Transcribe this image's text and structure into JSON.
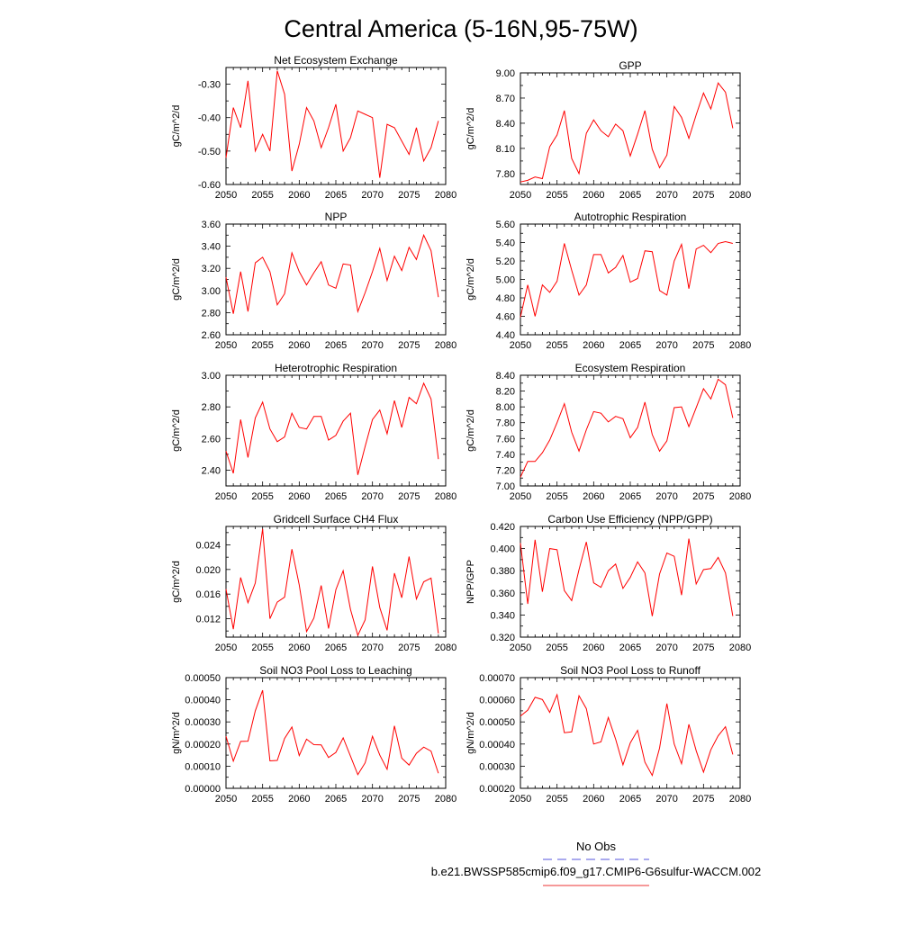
{
  "page_title": "Central America (5-16N,95-75W)",
  "legend": {
    "entries": [
      {
        "label": "No Obs",
        "color": "#5555dd",
        "dash": "dashed"
      },
      {
        "label": "b.e21.BWSSP585cmip6.f09_g17.CMIP6-G6sulfur-WACCM.002",
        "color": "#ee3333",
        "dash": "solid"
      }
    ]
  },
  "chart_data": [
    {
      "type": "line",
      "title": "Net Ecosystem Exchange",
      "ylabel": "gC/m^2/d",
      "xlim": [
        2050,
        2080
      ],
      "ylim": [
        -0.6,
        -0.25
      ],
      "x_ticks": [
        "2050",
        "2055",
        "2060",
        "2065",
        "2070",
        "2075",
        "2080"
      ],
      "y_ticks": [
        -0.6,
        -0.5,
        -0.4,
        -0.3
      ],
      "y_tick_labels": [
        "-0.60",
        "-0.50",
        "-0.40",
        "-0.30"
      ],
      "color": "#ff0000",
      "x": [
        2050,
        2051,
        2052,
        2053,
        2054,
        2055,
        2056,
        2057,
        2058,
        2059,
        2060,
        2061,
        2062,
        2063,
        2064,
        2065,
        2066,
        2067,
        2068,
        2069,
        2070,
        2071,
        2072,
        2073,
        2074,
        2075,
        2076,
        2077,
        2078,
        2079
      ],
      "values": [
        -0.52,
        -0.37,
        -0.43,
        -0.29,
        -0.5,
        -0.45,
        -0.5,
        -0.26,
        -0.33,
        -0.56,
        -0.48,
        -0.37,
        -0.41,
        -0.49,
        -0.43,
        -0.36,
        -0.5,
        -0.46,
        -0.38,
        -0.39,
        -0.4,
        -0.58,
        -0.42,
        -0.43,
        -0.47,
        -0.51,
        -0.43,
        -0.53,
        -0.49,
        -0.41
      ]
    },
    {
      "type": "line",
      "title": "GPP",
      "ylabel": "gC/m^2/d",
      "xlim": [
        2050,
        2080
      ],
      "ylim": [
        7.67,
        9.0
      ],
      "x_ticks": [
        "2050",
        "2055",
        "2060",
        "2065",
        "2070",
        "2075",
        "2080"
      ],
      "y_ticks": [
        7.8,
        8.1,
        8.4,
        8.7,
        9.0
      ],
      "y_tick_labels": [
        "7.80",
        "8.10",
        "8.40",
        "8.70",
        "9.00"
      ],
      "color": "#ff0000",
      "x": [
        2050,
        2051,
        2052,
        2053,
        2054,
        2055,
        2056,
        2057,
        2058,
        2059,
        2060,
        2061,
        2062,
        2063,
        2064,
        2065,
        2066,
        2067,
        2068,
        2069,
        2070,
        2071,
        2072,
        2073,
        2074,
        2075,
        2076,
        2077,
        2078,
        2079
      ],
      "values": [
        7.7,
        7.72,
        7.76,
        7.74,
        8.12,
        8.26,
        8.55,
        7.98,
        7.8,
        8.28,
        8.44,
        8.31,
        8.24,
        8.39,
        8.31,
        8.01,
        8.27,
        8.55,
        8.09,
        7.87,
        8.02,
        8.6,
        8.47,
        8.22,
        8.5,
        8.76,
        8.57,
        8.88,
        8.77,
        8.34
      ]
    },
    {
      "type": "line",
      "title": "NPP",
      "ylabel": "gC/m^2/d",
      "xlim": [
        2050,
        2080
      ],
      "ylim": [
        2.6,
        3.6
      ],
      "x_ticks": [
        "2050",
        "2055",
        "2060",
        "2065",
        "2070",
        "2075",
        "2080"
      ],
      "y_ticks": [
        2.6,
        2.8,
        3.0,
        3.2,
        3.4,
        3.6
      ],
      "y_tick_labels": [
        "2.60",
        "2.80",
        "3.00",
        "3.20",
        "3.40",
        "3.60"
      ],
      "color": "#ff0000",
      "x": [
        2050,
        2051,
        2052,
        2053,
        2054,
        2055,
        2056,
        2057,
        2058,
        2059,
        2060,
        2061,
        2062,
        2063,
        2064,
        2065,
        2066,
        2067,
        2068,
        2069,
        2070,
        2071,
        2072,
        2073,
        2074,
        2075,
        2076,
        2077,
        2078,
        2079
      ],
      "values": [
        3.12,
        2.79,
        3.17,
        2.81,
        3.25,
        3.3,
        3.17,
        2.87,
        2.97,
        3.34,
        3.17,
        3.05,
        3.16,
        3.26,
        3.05,
        3.02,
        3.24,
        3.23,
        2.81,
        2.98,
        3.17,
        3.38,
        3.09,
        3.31,
        3.18,
        3.39,
        3.28,
        3.5,
        3.36,
        2.94
      ]
    },
    {
      "type": "line",
      "title": "Autotrophic Respiration",
      "ylabel": "gC/m^2/d",
      "xlim": [
        2050,
        2080
      ],
      "ylim": [
        4.4,
        5.6
      ],
      "x_ticks": [
        "2050",
        "2055",
        "2060",
        "2065",
        "2070",
        "2075",
        "2080"
      ],
      "y_ticks": [
        4.4,
        4.6,
        4.8,
        5.0,
        5.2,
        5.4,
        5.6
      ],
      "y_tick_labels": [
        "4.40",
        "4.60",
        "4.80",
        "5.00",
        "5.20",
        "5.40",
        "5.60"
      ],
      "color": "#ff0000",
      "x": [
        2050,
        2051,
        2052,
        2053,
        2054,
        2055,
        2056,
        2057,
        2058,
        2059,
        2060,
        2061,
        2062,
        2063,
        2064,
        2065,
        2066,
        2067,
        2068,
        2069,
        2070,
        2071,
        2072,
        2073,
        2074,
        2075,
        2076,
        2077,
        2078,
        2079
      ],
      "values": [
        4.59,
        4.94,
        4.6,
        4.94,
        4.86,
        4.98,
        5.39,
        5.1,
        4.83,
        4.94,
        5.27,
        5.27,
        5.07,
        5.13,
        5.26,
        4.97,
        5.01,
        5.31,
        5.3,
        4.88,
        4.83,
        5.2,
        5.38,
        4.9,
        5.33,
        5.37,
        5.29,
        5.39,
        5.41,
        5.39
      ]
    },
    {
      "type": "line",
      "title": "Heterotrophic Respiration",
      "ylabel": "gC/m^2/d",
      "xlim": [
        2050,
        2080
      ],
      "ylim": [
        2.3,
        3.0
      ],
      "x_ticks": [
        "2050",
        "2055",
        "2060",
        "2065",
        "2070",
        "2075",
        "2080"
      ],
      "y_ticks": [
        2.4,
        2.6,
        2.8,
        3.0
      ],
      "y_tick_labels": [
        "2.40",
        "2.60",
        "2.80",
        "3.00"
      ],
      "color": "#ff0000",
      "x": [
        2050,
        2051,
        2052,
        2053,
        2054,
        2055,
        2056,
        2057,
        2058,
        2059,
        2060,
        2061,
        2062,
        2063,
        2064,
        2065,
        2066,
        2067,
        2068,
        2069,
        2070,
        2071,
        2072,
        2073,
        2074,
        2075,
        2076,
        2077,
        2078,
        2079
      ],
      "values": [
        2.52,
        2.38,
        2.72,
        2.48,
        2.73,
        2.83,
        2.66,
        2.58,
        2.61,
        2.76,
        2.67,
        2.66,
        2.74,
        2.74,
        2.59,
        2.62,
        2.71,
        2.76,
        2.37,
        2.55,
        2.72,
        2.78,
        2.63,
        2.84,
        2.67,
        2.86,
        2.82,
        2.95,
        2.85,
        2.47
      ]
    },
    {
      "type": "line",
      "title": "Ecosystem Respiration",
      "ylabel": "gC/m^2/d",
      "xlim": [
        2050,
        2080
      ],
      "ylim": [
        7.0,
        8.4
      ],
      "x_ticks": [
        "2050",
        "2055",
        "2060",
        "2065",
        "2070",
        "2075",
        "2080"
      ],
      "y_ticks": [
        7.0,
        7.2,
        7.4,
        7.6,
        7.8,
        8.0,
        8.2,
        8.4
      ],
      "y_tick_labels": [
        "7.00",
        "7.20",
        "7.40",
        "7.60",
        "7.80",
        "8.00",
        "8.20",
        "8.40"
      ],
      "color": "#ff0000",
      "x": [
        2050,
        2051,
        2052,
        2053,
        2054,
        2055,
        2056,
        2057,
        2058,
        2059,
        2060,
        2061,
        2062,
        2063,
        2064,
        2065,
        2066,
        2067,
        2068,
        2069,
        2070,
        2071,
        2072,
        2073,
        2074,
        2075,
        2076,
        2077,
        2078,
        2079
      ],
      "values": [
        7.11,
        7.31,
        7.31,
        7.42,
        7.58,
        7.8,
        8.04,
        7.68,
        7.44,
        7.71,
        7.94,
        7.92,
        7.81,
        7.88,
        7.85,
        7.61,
        7.74,
        8.06,
        7.65,
        7.44,
        7.57,
        7.99,
        8.0,
        7.75,
        7.99,
        8.23,
        8.1,
        8.35,
        8.28,
        7.86
      ]
    },
    {
      "type": "line",
      "title": "Gridcell Surface CH4 Flux",
      "ylabel": "gC/m^2/d",
      "xlim": [
        2050,
        2080
      ],
      "ylim": [
        0.009,
        0.027
      ],
      "x_ticks": [
        "2050",
        "2055",
        "2060",
        "2065",
        "2070",
        "2075",
        "2080"
      ],
      "y_ticks": [
        0.012,
        0.016,
        0.02,
        0.024
      ],
      "y_tick_labels": [
        "0.012",
        "0.016",
        "0.020",
        "0.024"
      ],
      "color": "#ff0000",
      "x": [
        2050,
        2051,
        2052,
        2053,
        2054,
        2055,
        2056,
        2057,
        2058,
        2059,
        2060,
        2061,
        2062,
        2063,
        2064,
        2065,
        2066,
        2067,
        2068,
        2069,
        2070,
        2071,
        2072,
        2073,
        2074,
        2075,
        2076,
        2077,
        2078,
        2079
      ],
      "values": [
        0.0168,
        0.0103,
        0.0187,
        0.0146,
        0.0178,
        0.0266,
        0.012,
        0.0147,
        0.0155,
        0.0233,
        0.0175,
        0.0099,
        0.0121,
        0.0174,
        0.0104,
        0.0167,
        0.0198,
        0.0135,
        0.0093,
        0.0118,
        0.0205,
        0.0138,
        0.0101,
        0.0194,
        0.0154,
        0.0221,
        0.0152,
        0.018,
        0.0186,
        0.0096
      ]
    },
    {
      "type": "line",
      "title": "Carbon Use Efficiency (NPP/GPP)",
      "ylabel": "NPP/GPP",
      "xlim": [
        2050,
        2080
      ],
      "ylim": [
        0.32,
        0.42
      ],
      "x_ticks": [
        "2050",
        "2055",
        "2060",
        "2065",
        "2070",
        "2075",
        "2080"
      ],
      "y_ticks": [
        0.32,
        0.34,
        0.36,
        0.38,
        0.4,
        0.42
      ],
      "y_tick_labels": [
        "0.320",
        "0.340",
        "0.360",
        "0.380",
        "0.400",
        "0.420"
      ],
      "color": "#ff0000",
      "x": [
        2050,
        2051,
        2052,
        2053,
        2054,
        2055,
        2056,
        2057,
        2058,
        2059,
        2060,
        2061,
        2062,
        2063,
        2064,
        2065,
        2066,
        2067,
        2068,
        2069,
        2070,
        2071,
        2072,
        2073,
        2074,
        2075,
        2076,
        2077,
        2078,
        2079
      ],
      "values": [
        0.405,
        0.35,
        0.408,
        0.361,
        0.4,
        0.399,
        0.362,
        0.353,
        0.381,
        0.406,
        0.369,
        0.365,
        0.38,
        0.386,
        0.364,
        0.374,
        0.388,
        0.378,
        0.339,
        0.377,
        0.396,
        0.393,
        0.358,
        0.409,
        0.368,
        0.381,
        0.382,
        0.392,
        0.378,
        0.339
      ]
    },
    {
      "type": "line",
      "title": "Soil NO3 Pool Loss to Leaching",
      "ylabel": "gN/m^2/d",
      "xlim": [
        2050,
        2080
      ],
      "ylim": [
        0.0,
        0.0005
      ],
      "x_ticks": [
        "2050",
        "2055",
        "2060",
        "2065",
        "2070",
        "2075",
        "2080"
      ],
      "y_ticks": [
        0.0,
        0.0001,
        0.0002,
        0.0003,
        0.0004,
        0.0005
      ],
      "y_tick_labels": [
        "0.00000",
        "0.00010",
        "0.00020",
        "0.00030",
        "0.00040",
        "0.00050"
      ],
      "color": "#ff0000",
      "x": [
        2050,
        2051,
        2052,
        2053,
        2054,
        2055,
        2056,
        2057,
        2058,
        2059,
        2060,
        2061,
        2062,
        2063,
        2064,
        2065,
        2066,
        2067,
        2068,
        2069,
        2070,
        2071,
        2072,
        2073,
        2074,
        2075,
        2076,
        2077,
        2078,
        2079
      ],
      "values": [
        0.000235,
        0.000123,
        0.000212,
        0.000213,
        0.00035,
        0.000443,
        0.000124,
        0.000126,
        0.000225,
        0.000277,
        0.000148,
        0.000222,
        0.000197,
        0.000196,
        0.000139,
        0.000162,
        0.000228,
        0.000145,
        6.2e-05,
        0.000115,
        0.000235,
        0.00015,
        8.6e-05,
        0.000282,
        0.000136,
        0.000105,
        0.000158,
        0.000186,
        0.000168,
        6.8e-05
      ]
    },
    {
      "type": "line",
      "title": "Soil NO3 Pool Loss to Runoff",
      "ylabel": "gN/m^2/d",
      "xlim": [
        2050,
        2080
      ],
      "ylim": [
        0.0002,
        0.0007
      ],
      "x_ticks": [
        "2050",
        "2055",
        "2060",
        "2065",
        "2070",
        "2075",
        "2080"
      ],
      "y_ticks": [
        0.0002,
        0.0003,
        0.0004,
        0.0005,
        0.0006,
        0.0007
      ],
      "y_tick_labels": [
        "0.00020",
        "0.00030",
        "0.00040",
        "0.00050",
        "0.00060",
        "0.00070"
      ],
      "color": "#ff0000",
      "x": [
        2050,
        2051,
        2052,
        2053,
        2054,
        2055,
        2056,
        2057,
        2058,
        2059,
        2060,
        2061,
        2062,
        2063,
        2064,
        2065,
        2066,
        2067,
        2068,
        2069,
        2070,
        2071,
        2072,
        2073,
        2074,
        2075,
        2076,
        2077,
        2078,
        2079
      ],
      "values": [
        0.000526,
        0.000553,
        0.000611,
        0.000601,
        0.000543,
        0.000623,
        0.000451,
        0.000455,
        0.000618,
        0.00056,
        0.0004,
        0.00041,
        0.00052,
        0.000422,
        0.000306,
        0.000405,
        0.000462,
        0.000318,
        0.000258,
        0.000382,
        0.000583,
        0.0004,
        0.000311,
        0.000489,
        0.00037,
        0.000273,
        0.000374,
        0.000437,
        0.000478,
        0.000353
      ]
    }
  ]
}
